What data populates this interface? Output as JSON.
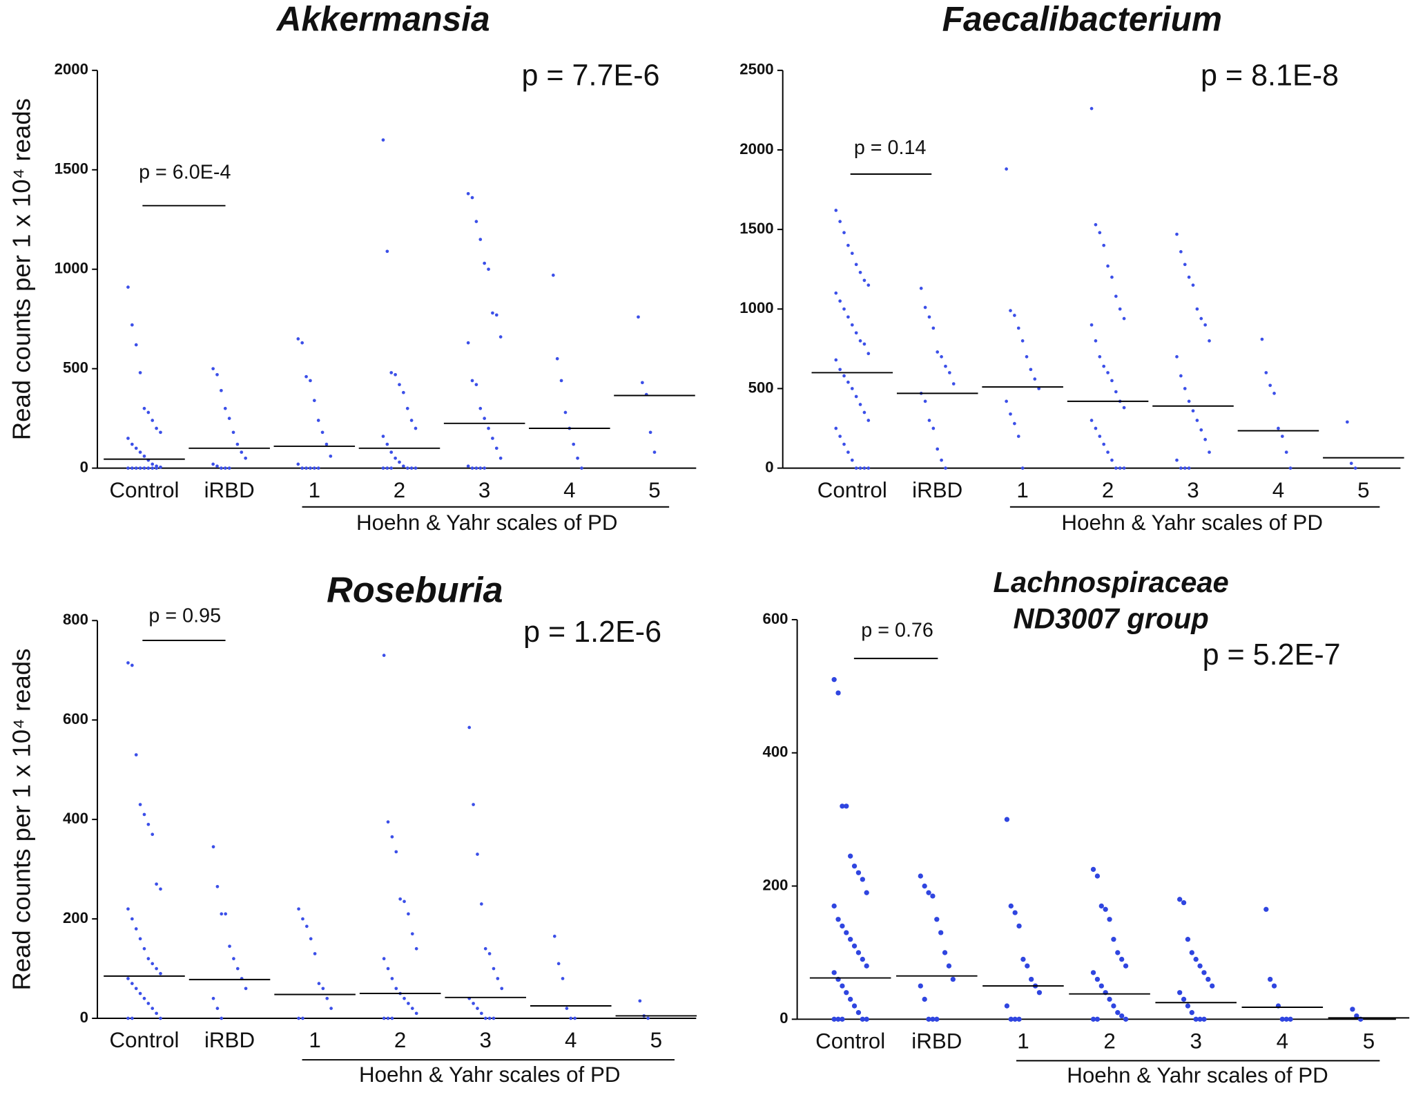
{
  "chart_data": [
    {
      "type": "strip",
      "title": "Akkermansia",
      "ylabel": "Read counts per 1 x 10⁴ reads",
      "p_overall": "p = 7.7E-6",
      "p_pairwise": "p = 6.0E-4",
      "group_label": "Hoehn & Yahr scales of PD",
      "color": "#3b4fe8",
      "categories": [
        "Control",
        "iRBD",
        "1",
        "2",
        "3",
        "4",
        "5"
      ],
      "ylim": [
        0,
        2000
      ],
      "yticks": [
        0,
        500,
        1000,
        1500,
        2000
      ],
      "points": [
        [
          910,
          720,
          620,
          480,
          300,
          280,
          240,
          200,
          180,
          150,
          120,
          100,
          80,
          60,
          40,
          20,
          10,
          5,
          0,
          0,
          0,
          0,
          0,
          0,
          0,
          0
        ],
        [
          500,
          470,
          390,
          300,
          250,
          180,
          120,
          80,
          50,
          20,
          10,
          0,
          0,
          0
        ],
        [
          650,
          630,
          460,
          440,
          340,
          240,
          180,
          120,
          60,
          20,
          0,
          0,
          0,
          0,
          0
        ],
        [
          1650,
          1090,
          480,
          470,
          420,
          380,
          300,
          240,
          200,
          160,
          120,
          80,
          50,
          30,
          10,
          0,
          0,
          0,
          0,
          0,
          0
        ],
        [
          1380,
          1360,
          1240,
          1150,
          1030,
          1000,
          780,
          770,
          660,
          630,
          440,
          420,
          300,
          250,
          200,
          150,
          100,
          50,
          10,
          0,
          0,
          0,
          0
        ],
        [
          970,
          550,
          440,
          280,
          200,
          120,
          50,
          0
        ],
        [
          760,
          430,
          370,
          180,
          80
        ]
      ],
      "medians": [
        45,
        100,
        110,
        100,
        225,
        200,
        365
      ]
    },
    {
      "type": "strip",
      "title": "Faecalibacterium",
      "p_overall": "p = 8.1E-8",
      "p_pairwise": "p = 0.14",
      "group_label": "Hoehn & Yahr scales of PD",
      "color": "#3b4fe8",
      "categories": [
        "Control",
        "iRBD",
        "1",
        "2",
        "3",
        "4",
        "5"
      ],
      "ylim": [
        0,
        2500
      ],
      "yticks": [
        0,
        500,
        1000,
        1500,
        2000,
        2500
      ],
      "points": [
        [
          1620,
          1550,
          1480,
          1400,
          1350,
          1280,
          1230,
          1180,
          1150,
          1100,
          1050,
          1000,
          950,
          900,
          850,
          800,
          780,
          720,
          680,
          620,
          580,
          540,
          500,
          450,
          400,
          350,
          300,
          250,
          200,
          150,
          100,
          50,
          0,
          0,
          0,
          0
        ],
        [
          1130,
          1010,
          950,
          880,
          730,
          700,
          640,
          600,
          530,
          470,
          420,
          300,
          250,
          120,
          50,
          0
        ],
        [
          1880,
          990,
          960,
          880,
          800,
          700,
          620,
          560,
          500,
          420,
          340,
          280,
          200,
          0
        ],
        [
          2260,
          1530,
          1480,
          1400,
          1270,
          1200,
          1080,
          1000,
          940,
          900,
          800,
          700,
          640,
          600,
          550,
          480,
          420,
          380,
          300,
          250,
          200,
          150,
          100,
          50,
          0,
          0,
          0
        ],
        [
          1470,
          1360,
          1280,
          1200,
          1150,
          1000,
          940,
          900,
          800,
          700,
          580,
          500,
          420,
          360,
          300,
          240,
          180,
          100,
          50,
          0,
          0,
          0
        ],
        [
          810,
          600,
          520,
          470,
          250,
          200,
          100,
          0
        ],
        [
          290,
          30,
          0
        ]
      ],
      "medians": [
        600,
        470,
        510,
        420,
        390,
        235,
        65
      ]
    },
    {
      "type": "strip",
      "title": "Roseburia",
      "ylabel": "Read counts per 1 x 10⁴ reads",
      "p_overall": "p  = 1.2E-6",
      "p_pairwise": "p = 0.95",
      "group_label": "Hoehn & Yahr scales of PD",
      "color": "#3b4fe8",
      "categories": [
        "Control",
        "iRBD",
        "1",
        "2",
        "3",
        "4",
        "5"
      ],
      "ylim": [
        0,
        800
      ],
      "yticks": [
        0,
        200,
        400,
        600,
        800
      ],
      "points": [
        [
          715,
          710,
          530,
          430,
          410,
          390,
          370,
          270,
          260,
          220,
          200,
          180,
          160,
          140,
          120,
          110,
          100,
          90,
          80,
          70,
          60,
          50,
          40,
          30,
          20,
          10,
          0,
          0,
          0
        ],
        [
          345,
          265,
          210,
          210,
          145,
          120,
          100,
          80,
          60,
          40,
          20,
          0
        ],
        [
          220,
          200,
          185,
          160,
          130,
          70,
          60,
          40,
          20,
          0,
          0
        ],
        [
          730,
          395,
          365,
          335,
          240,
          235,
          210,
          170,
          140,
          120,
          100,
          80,
          60,
          50,
          40,
          30,
          20,
          10,
          0,
          0,
          0
        ],
        [
          585,
          430,
          330,
          230,
          140,
          130,
          100,
          80,
          60,
          40,
          30,
          20,
          10,
          0,
          0,
          0
        ],
        [
          165,
          110,
          80,
          20,
          0,
          0
        ],
        [
          35,
          5,
          0
        ]
      ],
      "medians": [
        85,
        78,
        48,
        50,
        42,
        25,
        5
      ]
    },
    {
      "type": "strip",
      "title": [
        "Lachnospiraceae",
        "ND3007 group"
      ],
      "p_overall": "p = 5.2E-7",
      "p_pairwise": "p = 0.76",
      "group_label": "Hoehn & Yahr scales of PD",
      "color": "#2f45e0",
      "categories": [
        "Control",
        "iRBD",
        "1",
        "2",
        "3",
        "4",
        "5"
      ],
      "ylim": [
        0,
        600
      ],
      "yticks": [
        0,
        200,
        400,
        600
      ],
      "points": [
        [
          510,
          490,
          320,
          320,
          245,
          230,
          220,
          210,
          190,
          170,
          150,
          140,
          130,
          120,
          110,
          100,
          90,
          80,
          70,
          60,
          50,
          40,
          30,
          20,
          10,
          0,
          0,
          0,
          0,
          0
        ],
        [
          215,
          200,
          190,
          185,
          150,
          130,
          100,
          80,
          60,
          50,
          30,
          0,
          0,
          0
        ],
        [
          300,
          170,
          160,
          140,
          90,
          80,
          60,
          50,
          40,
          20,
          0,
          0,
          0
        ],
        [
          225,
          215,
          170,
          165,
          150,
          120,
          100,
          90,
          80,
          70,
          60,
          50,
          40,
          30,
          20,
          10,
          5,
          0,
          0,
          0
        ],
        [
          180,
          175,
          120,
          100,
          90,
          80,
          70,
          60,
          50,
          40,
          30,
          20,
          10,
          0,
          0,
          0
        ],
        [
          165,
          60,
          50,
          20,
          0,
          0,
          0
        ],
        [
          15,
          5,
          0
        ]
      ],
      "medians": [
        62,
        65,
        50,
        38,
        25,
        18,
        2
      ]
    }
  ]
}
